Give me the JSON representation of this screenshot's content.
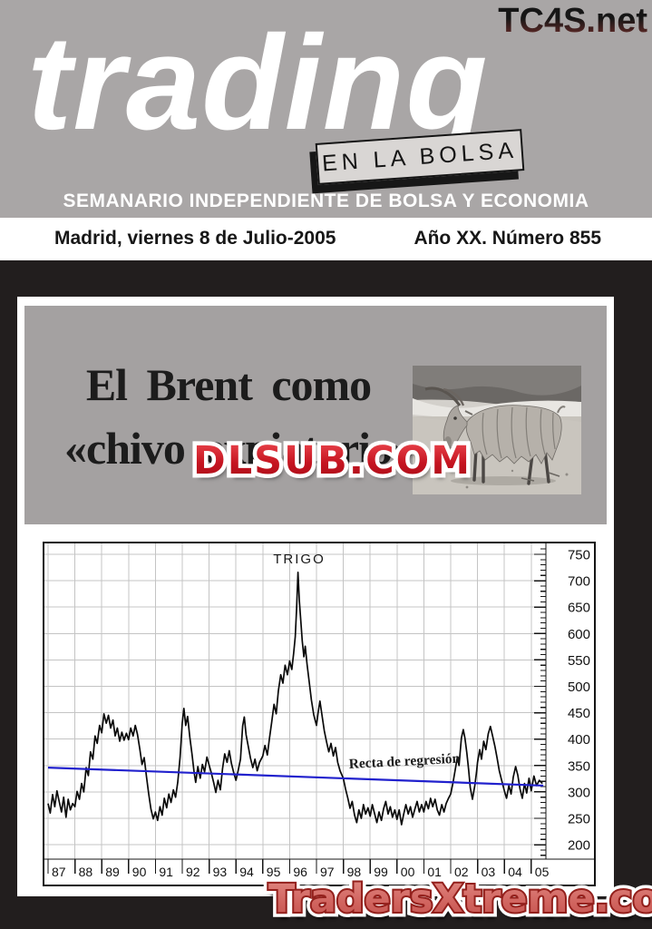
{
  "masthead": {
    "site": "TC4S.net",
    "title": "trading",
    "box_label": "EN LA BOLSA",
    "tagline": "SEMANARIO INDEPENDIENTE DE BOLSA Y ECONOMIA"
  },
  "dateline": {
    "date": "Madrid, viernes 8 de Julio-2005",
    "issue": "Año XX. Número 855"
  },
  "article": {
    "headline_line1": "El Brent como",
    "headline_line2": "«chivo expiatorio»",
    "image": "goat-on-beach"
  },
  "watermarks": {
    "center": "DLSUB.COM",
    "bottom": "TradersXtreme.com"
  },
  "colors": {
    "masthead_gray": "#a9a6a6",
    "headline_gray": "#a4a1a1",
    "frame_black": "#221e1e",
    "watermark_red": "#c81a26",
    "watermark_salmon": "#d2706c",
    "regression_blue": "#2121cd",
    "grid_gray": "#c4c4c4"
  },
  "chart_data": {
    "type": "line",
    "title": "TRIGO",
    "annotation": "Recta de regresión",
    "x_ticks": [
      "87",
      "88",
      "89",
      "90",
      "91",
      "92",
      "93",
      "94",
      "95",
      "96",
      "97",
      "98",
      "99",
      "00",
      "01",
      "02",
      "03",
      "04",
      "05"
    ],
    "y_ticks": [
      200,
      250,
      300,
      350,
      400,
      450,
      500,
      550,
      600,
      650,
      700,
      750
    ],
    "ylim": [
      176,
      774
    ],
    "xlim": [
      "1987",
      "2005"
    ],
    "grid": true,
    "y_axis_side": "right",
    "series": [
      {
        "name": "TRIGO",
        "color": "#0a0a0a",
        "points": [
          [
            87.0,
            278
          ],
          [
            87.08,
            260
          ],
          [
            87.17,
            295
          ],
          [
            87.25,
            272
          ],
          [
            87.33,
            302
          ],
          [
            87.42,
            281
          ],
          [
            87.5,
            262
          ],
          [
            87.58,
            290
          ],
          [
            87.67,
            252
          ],
          [
            87.75,
            286
          ],
          [
            87.83,
            266
          ],
          [
            87.92,
            278
          ],
          [
            88.0,
            272
          ],
          [
            88.08,
            301
          ],
          [
            88.17,
            286
          ],
          [
            88.25,
            316
          ],
          [
            88.33,
            300
          ],
          [
            88.42,
            346
          ],
          [
            88.5,
            331
          ],
          [
            88.58,
            376
          ],
          [
            88.67,
            362
          ],
          [
            88.75,
            406
          ],
          [
            88.83,
            392
          ],
          [
            88.92,
            426
          ],
          [
            89.0,
            412
          ],
          [
            89.08,
            448
          ],
          [
            89.17,
            430
          ],
          [
            89.25,
            445
          ],
          [
            89.33,
            421
          ],
          [
            89.42,
            436
          ],
          [
            89.5,
            406
          ],
          [
            89.58,
            421
          ],
          [
            89.67,
            396
          ],
          [
            89.75,
            413
          ],
          [
            89.83,
            398
          ],
          [
            89.92,
            411
          ],
          [
            90.0,
            399
          ],
          [
            90.08,
            421
          ],
          [
            90.17,
            406
          ],
          [
            90.25,
            426
          ],
          [
            90.33,
            409
          ],
          [
            90.42,
            381
          ],
          [
            90.5,
            352
          ],
          [
            90.58,
            365
          ],
          [
            90.67,
            328
          ],
          [
            90.75,
            296
          ],
          [
            90.83,
            268
          ],
          [
            90.92,
            249
          ],
          [
            91.0,
            262
          ],
          [
            91.08,
            246
          ],
          [
            91.17,
            272
          ],
          [
            91.25,
            256
          ],
          [
            91.33,
            288
          ],
          [
            91.42,
            270
          ],
          [
            91.5,
            296
          ],
          [
            91.58,
            280
          ],
          [
            91.67,
            304
          ],
          [
            91.75,
            290
          ],
          [
            91.83,
            318
          ],
          [
            91.92,
            366
          ],
          [
            92.0,
            431
          ],
          [
            92.06,
            458
          ],
          [
            92.13,
            426
          ],
          [
            92.2,
            443
          ],
          [
            92.28,
            404
          ],
          [
            92.36,
            372
          ],
          [
            92.44,
            338
          ],
          [
            92.5,
            318
          ],
          [
            92.58,
            348
          ],
          [
            92.67,
            326
          ],
          [
            92.75,
            352
          ],
          [
            92.83,
            338
          ],
          [
            92.92,
            366
          ],
          [
            93.0,
            351
          ],
          [
            93.08,
            336
          ],
          [
            93.17,
            318
          ],
          [
            93.25,
            299
          ],
          [
            93.33,
            322
          ],
          [
            93.42,
            304
          ],
          [
            93.5,
            344
          ],
          [
            93.58,
            372
          ],
          [
            93.67,
            356
          ],
          [
            93.75,
            378
          ],
          [
            93.83,
            354
          ],
          [
            93.92,
            336
          ],
          [
            94.0,
            322
          ],
          [
            94.08,
            340
          ],
          [
            94.17,
            362
          ],
          [
            94.25,
            425
          ],
          [
            94.31,
            442
          ],
          [
            94.38,
            408
          ],
          [
            94.46,
            386
          ],
          [
            94.54,
            364
          ],
          [
            94.63,
            346
          ],
          [
            94.71,
            362
          ],
          [
            94.79,
            340
          ],
          [
            94.88,
            356
          ],
          [
            95.0,
            368
          ],
          [
            95.08,
            388
          ],
          [
            95.17,
            370
          ],
          [
            95.25,
            402
          ],
          [
            95.33,
            432
          ],
          [
            95.42,
            466
          ],
          [
            95.5,
            448
          ],
          [
            95.58,
            492
          ],
          [
            95.67,
            522
          ],
          [
            95.75,
            506
          ],
          [
            95.83,
            540
          ],
          [
            95.92,
            522
          ],
          [
            96.0,
            548
          ],
          [
            96.08,
            532
          ],
          [
            96.15,
            562
          ],
          [
            96.21,
            594
          ],
          [
            96.26,
            648
          ],
          [
            96.31,
            716
          ],
          [
            96.36,
            662
          ],
          [
            96.42,
            622
          ],
          [
            96.47,
            586
          ],
          [
            96.53,
            556
          ],
          [
            96.58,
            576
          ],
          [
            96.65,
            542
          ],
          [
            96.73,
            508
          ],
          [
            96.81,
            474
          ],
          [
            96.9,
            446
          ],
          [
            97.0,
            426
          ],
          [
            97.06,
            450
          ],
          [
            97.13,
            472
          ],
          [
            97.21,
            444
          ],
          [
            97.29,
            416
          ],
          [
            97.38,
            394
          ],
          [
            97.46,
            376
          ],
          [
            97.54,
            392
          ],
          [
            97.63,
            368
          ],
          [
            97.71,
            384
          ],
          [
            97.79,
            356
          ],
          [
            97.88,
            340
          ],
          [
            98.0,
            326
          ],
          [
            98.08,
            306
          ],
          [
            98.17,
            288
          ],
          [
            98.25,
            269
          ],
          [
            98.33,
            282
          ],
          [
            98.42,
            256
          ],
          [
            98.5,
            242
          ],
          [
            98.58,
            266
          ],
          [
            98.67,
            250
          ],
          [
            98.75,
            276
          ],
          [
            98.83,
            258
          ],
          [
            98.92,
            270
          ],
          [
            99.0,
            254
          ],
          [
            99.08,
            276
          ],
          [
            99.17,
            258
          ],
          [
            99.25,
            242
          ],
          [
            99.33,
            262
          ],
          [
            99.42,
            246
          ],
          [
            99.5,
            268
          ],
          [
            99.58,
            282
          ],
          [
            99.67,
            258
          ],
          [
            99.75,
            272
          ],
          [
            99.83,
            252
          ],
          [
            99.92,
            266
          ],
          [
            100.0,
            248
          ],
          [
            100.08,
            266
          ],
          [
            100.17,
            238
          ],
          [
            100.25,
            258
          ],
          [
            100.33,
            276
          ],
          [
            100.42,
            258
          ],
          [
            100.5,
            272
          ],
          [
            100.58,
            252
          ],
          [
            100.67,
            268
          ],
          [
            100.75,
            282
          ],
          [
            100.83,
            262
          ],
          [
            100.92,
            276
          ],
          [
            101.0,
            262
          ],
          [
            101.08,
            282
          ],
          [
            101.17,
            268
          ],
          [
            101.25,
            288
          ],
          [
            101.33,
            272
          ],
          [
            101.42,
            286
          ],
          [
            101.5,
            266
          ],
          [
            101.58,
            256
          ],
          [
            101.67,
            276
          ],
          [
            101.75,
            262
          ],
          [
            101.83,
            278
          ],
          [
            101.92,
            288
          ],
          [
            102.0,
            296
          ],
          [
            102.08,
            316
          ],
          [
            102.17,
            342
          ],
          [
            102.25,
            366
          ],
          [
            102.31,
            350
          ],
          [
            102.4,
            402
          ],
          [
            102.47,
            418
          ],
          [
            102.53,
            402
          ],
          [
            102.6,
            374
          ],
          [
            102.67,
            342
          ],
          [
            102.73,
            308
          ],
          [
            102.81,
            286
          ],
          [
            102.9,
            312
          ],
          [
            102.96,
            336
          ],
          [
            103.0,
            356
          ],
          [
            103.08,
            380
          ],
          [
            103.15,
            362
          ],
          [
            103.23,
            396
          ],
          [
            103.31,
            380
          ],
          [
            103.4,
            410
          ],
          [
            103.48,
            424
          ],
          [
            103.56,
            406
          ],
          [
            103.65,
            386
          ],
          [
            103.73,
            364
          ],
          [
            103.81,
            340
          ],
          [
            103.9,
            322
          ],
          [
            104.0,
            302
          ],
          [
            104.08,
            288
          ],
          [
            104.17,
            312
          ],
          [
            104.25,
            296
          ],
          [
            104.33,
            328
          ],
          [
            104.42,
            348
          ],
          [
            104.5,
            332
          ],
          [
            104.58,
            306
          ],
          [
            104.67,
            288
          ],
          [
            104.75,
            316
          ],
          [
            104.83,
            298
          ],
          [
            104.92,
            326
          ],
          [
            105.0,
            302
          ],
          [
            105.1,
            330
          ],
          [
            105.2,
            312
          ],
          [
            105.3,
            322
          ],
          [
            105.42,
            316
          ]
        ]
      },
      {
        "name": "Recta de regresión",
        "color": "#2121cd",
        "points": [
          [
            87.0,
            346
          ],
          [
            105.45,
            312
          ]
        ]
      }
    ]
  }
}
